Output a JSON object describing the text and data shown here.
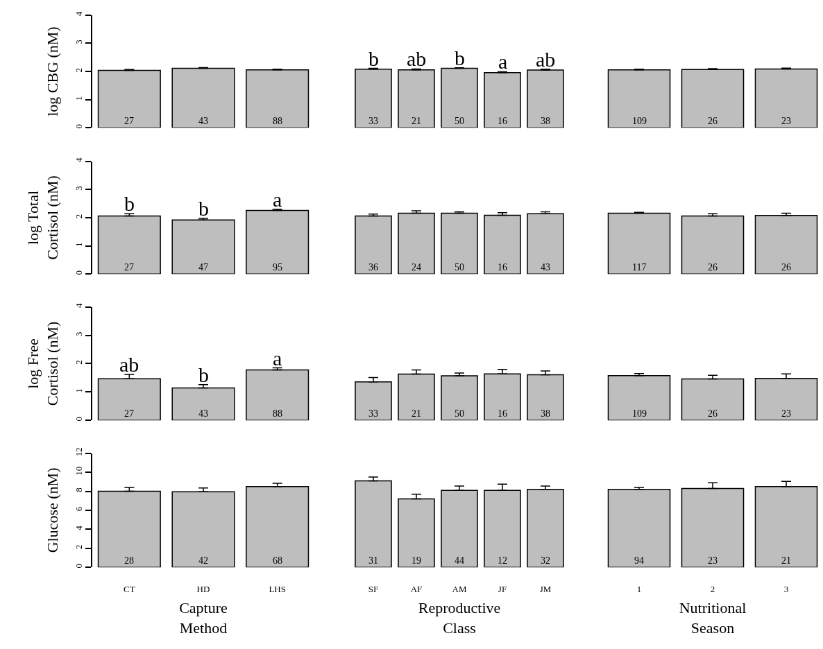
{
  "chart_data": [
    {
      "type": "bar",
      "categories": [
        "CT",
        "HD",
        "LHS"
      ],
      "values": [
        2.04,
        2.11,
        2.06
      ],
      "errors": [
        [
          2.04,
          2.07
        ],
        [
          2.11,
          2.14
        ],
        [
          2.06,
          2.08
        ]
      ],
      "color": "#bebebe",
      "ylim": [
        0,
        4
      ],
      "yticks": [
        0,
        1,
        2,
        3,
        4
      ],
      "ylabel": "log CBG (nM)",
      "tick_labels": "y",
      "annotations": [
        {
          "text": "27",
          "x": "CT",
          "y": 0
        },
        {
          "text": "43",
          "x": "HD",
          "y": 0
        },
        {
          "text": "88",
          "x": "LHS",
          "y": 0
        }
      ]
    },
    {
      "type": "bar",
      "categories": [
        "SF",
        "AF",
        "AM",
        "JF",
        "JM"
      ],
      "values": [
        2.08,
        2.06,
        2.11,
        1.96,
        2.05
      ],
      "errors": [
        [
          2.08,
          2.11
        ],
        [
          2.06,
          2.09
        ],
        [
          2.11,
          2.13
        ],
        [
          1.96,
          1.99
        ],
        [
          2.05,
          2.08
        ]
      ],
      "color": "#bebebe",
      "ylim": [
        0,
        4
      ],
      "tick_labels": false,
      "annotations": [
        {
          "text": "33",
          "x": "SF",
          "y": 0
        },
        {
          "text": "21",
          "x": "AF",
          "y": 0
        },
        {
          "text": "50",
          "x": "AM",
          "y": 0
        },
        {
          "text": "16",
          "x": "JF",
          "y": 0
        },
        {
          "text": "38",
          "x": "JM",
          "y": 0
        },
        {
          "text": "b",
          "x": "SF",
          "y": 2.11
        },
        {
          "text": "ab",
          "x": "AF",
          "y": 2.09
        },
        {
          "text": "b",
          "x": "AM",
          "y": 2.13
        },
        {
          "text": "a",
          "x": "JF",
          "y": 1.99
        },
        {
          "text": "ab",
          "x": "JM",
          "y": 2.08
        }
      ]
    },
    {
      "type": "bar",
      "categories": [
        "1",
        "2",
        "3"
      ],
      "values": [
        2.06,
        2.07,
        2.09
      ],
      "errors": [
        [
          2.06,
          2.08
        ],
        [
          2.07,
          2.1
        ],
        [
          2.09,
          2.12
        ]
      ],
      "color": "#bebebe",
      "ylim": [
        0,
        4
      ],
      "tick_labels": false,
      "annotations": [
        {
          "text": "109",
          "x": "1",
          "y": 0
        },
        {
          "text": "26",
          "x": "2",
          "y": 0
        },
        {
          "text": "23",
          "x": "3",
          "y": 0
        }
      ]
    },
    {
      "type": "bar",
      "categories": [
        "CT",
        "HD",
        "LHS"
      ],
      "values": [
        2.06,
        1.92,
        2.26
      ],
      "errors": [
        [
          2.06,
          2.14
        ],
        [
          1.92,
          1.98
        ],
        [
          2.26,
          2.3
        ]
      ],
      "color": "#bebebe",
      "ylim": [
        0,
        4
      ],
      "yticks": [
        0,
        1,
        2,
        3,
        4
      ],
      "ylabel": "log Total\nCortisol (nM)",
      "tick_labels": "y",
      "annotations": [
        {
          "text": "27",
          "x": "CT",
          "y": 0
        },
        {
          "text": "47",
          "x": "HD",
          "y": 0
        },
        {
          "text": "95",
          "x": "LHS",
          "y": 0
        },
        {
          "text": "b",
          "x": "CT",
          "y": 2.14
        },
        {
          "text": "b",
          "x": "HD",
          "y": 1.98
        },
        {
          "text": "a",
          "x": "LHS",
          "y": 2.3
        }
      ]
    },
    {
      "type": "bar",
      "categories": [
        "SF",
        "AF",
        "AM",
        "JF",
        "JM"
      ],
      "values": [
        2.06,
        2.16,
        2.16,
        2.09,
        2.14
      ],
      "errors": [
        [
          2.06,
          2.13
        ],
        [
          2.16,
          2.25
        ],
        [
          2.16,
          2.21
        ],
        [
          2.09,
          2.18
        ],
        [
          2.14,
          2.21
        ]
      ],
      "color": "#bebebe",
      "ylim": [
        0,
        4
      ],
      "tick_labels": false,
      "annotations": [
        {
          "text": "36",
          "x": "SF",
          "y": 0
        },
        {
          "text": "24",
          "x": "AF",
          "y": 0
        },
        {
          "text": "50",
          "x": "AM",
          "y": 0
        },
        {
          "text": "16",
          "x": "JF",
          "y": 0
        },
        {
          "text": "43",
          "x": "JM",
          "y": 0
        }
      ]
    },
    {
      "type": "bar",
      "categories": [
        "1",
        "2",
        "3"
      ],
      "values": [
        2.16,
        2.06,
        2.08
      ],
      "errors": [
        [
          2.16,
          2.19
        ],
        [
          2.06,
          2.14
        ],
        [
          2.08,
          2.16
        ]
      ],
      "color": "#bebebe",
      "ylim": [
        0,
        4
      ],
      "tick_labels": false,
      "annotations": [
        {
          "text": "117",
          "x": "1",
          "y": 0
        },
        {
          "text": "26",
          "x": "2",
          "y": 0
        },
        {
          "text": "26",
          "x": "3",
          "y": 0
        }
      ]
    },
    {
      "type": "bar",
      "categories": [
        "CT",
        "HD",
        "LHS"
      ],
      "values": [
        1.47,
        1.14,
        1.78
      ],
      "errors": [
        [
          1.47,
          1.62
        ],
        [
          1.14,
          1.26
        ],
        [
          1.78,
          1.85
        ]
      ],
      "color": "#bebebe",
      "ylim": [
        0,
        4
      ],
      "yticks": [
        0,
        1,
        2,
        3,
        4
      ],
      "ylabel": "log Free\nCortisol (nM)",
      "tick_labels": "y",
      "annotations": [
        {
          "text": "27",
          "x": "CT",
          "y": 0
        },
        {
          "text": "43",
          "x": "HD",
          "y": 0
        },
        {
          "text": "88",
          "x": "LHS",
          "y": 0
        },
        {
          "text": "ab",
          "x": "CT",
          "y": 1.62
        },
        {
          "text": "b",
          "x": "HD",
          "y": 1.26
        },
        {
          "text": "a",
          "x": "LHS",
          "y": 1.85
        }
      ]
    },
    {
      "type": "bar",
      "categories": [
        "SF",
        "AF",
        "AM",
        "JF",
        "JM"
      ],
      "values": [
        1.36,
        1.63,
        1.57,
        1.64,
        1.61
      ],
      "errors": [
        [
          1.36,
          1.51
        ],
        [
          1.63,
          1.78
        ],
        [
          1.57,
          1.67
        ],
        [
          1.64,
          1.8
        ],
        [
          1.61,
          1.74
        ]
      ],
      "color": "#bebebe",
      "ylim": [
        0,
        4
      ],
      "tick_labels": false,
      "annotations": [
        {
          "text": "33",
          "x": "SF",
          "y": 0
        },
        {
          "text": "21",
          "x": "AF",
          "y": 0
        },
        {
          "text": "50",
          "x": "AM",
          "y": 0
        },
        {
          "text": "16",
          "x": "JF",
          "y": 0
        },
        {
          "text": "38",
          "x": "JM",
          "y": 0
        }
      ]
    },
    {
      "type": "bar",
      "categories": [
        "1",
        "2",
        "3"
      ],
      "values": [
        1.58,
        1.46,
        1.48
      ],
      "errors": [
        [
          1.58,
          1.65
        ],
        [
          1.46,
          1.59
        ],
        [
          1.48,
          1.64
        ]
      ],
      "color": "#bebebe",
      "ylim": [
        0,
        4
      ],
      "tick_labels": false,
      "annotations": [
        {
          "text": "109",
          "x": "1",
          "y": 0
        },
        {
          "text": "26",
          "x": "2",
          "y": 0
        },
        {
          "text": "23",
          "x": "3",
          "y": 0
        }
      ]
    },
    {
      "type": "bar",
      "categories": [
        "CT",
        "HD",
        "LHS"
      ],
      "values": [
        8.0,
        7.95,
        8.5
      ],
      "errors": [
        [
          8.0,
          8.4
        ],
        [
          7.95,
          8.35
        ],
        [
          8.5,
          8.85
        ]
      ],
      "color": "#bebebe",
      "ylim": [
        0,
        12
      ],
      "yticks": [
        0,
        2,
        4,
        6,
        8,
        10,
        12
      ],
      "ylabel": "Glucose (nM)",
      "xlabel": "Capture\nMethod",
      "annotations": [
        {
          "text": "28",
          "x": "CT",
          "y": 0
        },
        {
          "text": "42",
          "x": "HD",
          "y": 0
        },
        {
          "text": "68",
          "x": "LHS",
          "y": 0
        }
      ]
    },
    {
      "type": "bar",
      "categories": [
        "SF",
        "AF",
        "AM",
        "JF",
        "JM"
      ],
      "values": [
        9.1,
        7.2,
        8.1,
        8.1,
        8.2
      ],
      "errors": [
        [
          9.1,
          9.5
        ],
        [
          7.2,
          7.7
        ],
        [
          8.1,
          8.55
        ],
        [
          8.1,
          8.75
        ],
        [
          8.2,
          8.55
        ]
      ],
      "color": "#bebebe",
      "ylim": [
        0,
        12
      ],
      "xlabel": "Reproductive\nClass",
      "tick_labels": "x",
      "annotations": [
        {
          "text": "31",
          "x": "SF",
          "y": 0
        },
        {
          "text": "19",
          "x": "AF",
          "y": 0
        },
        {
          "text": "44",
          "x": "AM",
          "y": 0
        },
        {
          "text": "12",
          "x": "JF",
          "y": 0
        },
        {
          "text": "32",
          "x": "JM",
          "y": 0
        }
      ]
    },
    {
      "type": "bar",
      "categories": [
        "1",
        "2",
        "3"
      ],
      "values": [
        8.2,
        8.3,
        8.5
      ],
      "errors": [
        [
          8.2,
          8.4
        ],
        [
          8.3,
          8.9
        ],
        [
          8.5,
          9.05
        ]
      ],
      "color": "#bebebe",
      "ylim": [
        0,
        12
      ],
      "xlabel": "Nutritional\nSeason",
      "tick_labels": "x",
      "annotations": [
        {
          "text": "94",
          "x": "1",
          "y": 0
        },
        {
          "text": "23",
          "x": "2",
          "y": 0
        },
        {
          "text": "21",
          "x": "3",
          "y": 0
        }
      ]
    }
  ]
}
